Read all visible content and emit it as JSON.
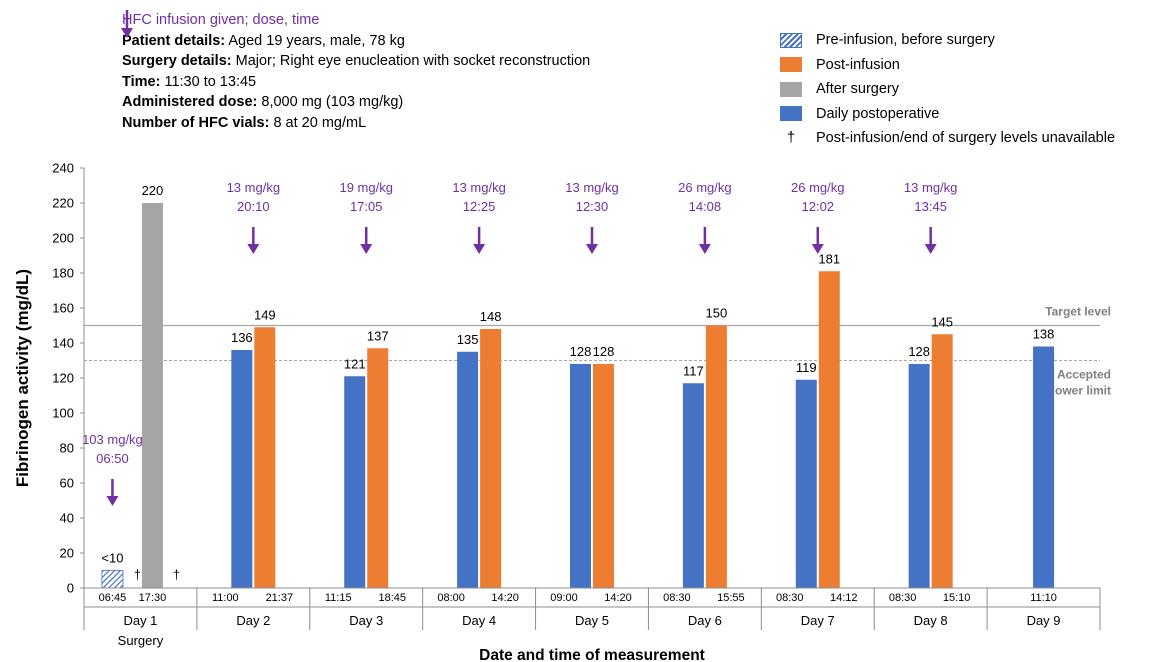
{
  "header": {
    "hfc_note": "HFC infusion given; dose, time",
    "patient_label": "Patient details:",
    "patient_value": " Aged 19 years, male, 78 kg",
    "surgery_label": "Surgery details:",
    "surgery_value": " Major; Right eye enucleation with socket reconstruction",
    "time_label": "Time:",
    "time_value": " 11:30 to 13:45",
    "dose_label": "Administered dose:",
    "dose_value": " 8,000 mg (103 mg/kg)",
    "vials_label": "Number of HFC vials:",
    "vials_value": " 8 at 20 mg/mL"
  },
  "legend": {
    "items": [
      {
        "label": "Pre-infusion, before surgery",
        "style": "hatched-blue"
      },
      {
        "label": "Post-infusion",
        "style": "orange"
      },
      {
        "label": "After surgery",
        "style": "gray"
      },
      {
        "label": "Daily postoperative",
        "style": "blue"
      },
      {
        "label": "Post-infusion/end of surgery levels unavailable",
        "style": "dagger",
        "symbol": "†"
      }
    ]
  },
  "colors": {
    "blue": "#4472c4",
    "orange": "#ed7d31",
    "gray": "#a5a5a5",
    "purple": "#7030a0",
    "reference_line": "#a6a6a6",
    "axis": "#8c8c8c",
    "reference_text": "#808080"
  },
  "chart_data": {
    "type": "bar",
    "xlabel": "Date and time of measurement",
    "ylabel": "Fibrinogen activity (mg/dL)",
    "ylim": [
      0,
      240
    ],
    "yticks": [
      0,
      20,
      40,
      60,
      80,
      100,
      120,
      140,
      160,
      180,
      200,
      220,
      240
    ],
    "grid": false,
    "legend_position": "top-right",
    "reference_lines": [
      {
        "label": "Target level",
        "value": 150,
        "style": "solid"
      },
      {
        "label": "Accepted lower limit",
        "value": 130,
        "style": "dashed"
      }
    ],
    "groups": [
      {
        "day": "Day 1",
        "subtitle": "Surgery",
        "infusion": {
          "dose": "103 mg/kg",
          "time": "06:50"
        },
        "measurements": [
          {
            "time": "06:45",
            "value": 10,
            "label": "<10",
            "type": "pre-infusion"
          },
          {
            "time": "17:30",
            "value": 220,
            "label": "220",
            "type": "after-surgery"
          }
        ],
        "daggers": [
          "†",
          "†"
        ]
      },
      {
        "day": "Day 2",
        "subtitle": "",
        "infusion": {
          "dose": "13 mg/kg",
          "time": "20:10"
        },
        "measurements": [
          {
            "time": "11:00",
            "value": 136,
            "label": "136",
            "type": "daily"
          },
          {
            "time": "21:37",
            "value": 149,
            "label": "149",
            "type": "post-infusion"
          }
        ]
      },
      {
        "day": "Day 3",
        "subtitle": "",
        "infusion": {
          "dose": "19 mg/kg",
          "time": "17:05"
        },
        "measurements": [
          {
            "time": "11:15",
            "value": 121,
            "label": "121",
            "type": "daily"
          },
          {
            "time": "18:45",
            "value": 137,
            "label": "137",
            "type": "post-infusion"
          }
        ]
      },
      {
        "day": "Day 4",
        "subtitle": "",
        "infusion": {
          "dose": "13 mg/kg",
          "time": "12:25"
        },
        "measurements": [
          {
            "time": "08:00",
            "value": 135,
            "label": "135",
            "type": "daily"
          },
          {
            "time": "14:20",
            "value": 148,
            "label": "148",
            "type": "post-infusion"
          }
        ]
      },
      {
        "day": "Day 5",
        "subtitle": "",
        "infusion": {
          "dose": "13 mg/kg",
          "time": "12:30"
        },
        "measurements": [
          {
            "time": "09:00",
            "value": 128,
            "label": "128",
            "type": "daily"
          },
          {
            "time": "14:20",
            "value": 128,
            "label": "128",
            "type": "post-infusion"
          }
        ]
      },
      {
        "day": "Day 6",
        "subtitle": "",
        "infusion": {
          "dose": "26 mg/kg",
          "time": "14:08"
        },
        "measurements": [
          {
            "time": "08:30",
            "value": 117,
            "label": "117",
            "type": "daily"
          },
          {
            "time": "15:55",
            "value": 150,
            "label": "150",
            "type": "post-infusion"
          }
        ]
      },
      {
        "day": "Day 7",
        "subtitle": "",
        "infusion": {
          "dose": "26 mg/kg",
          "time": "12:02"
        },
        "measurements": [
          {
            "time": "08:30",
            "value": 119,
            "label": "119",
            "type": "daily"
          },
          {
            "time": "14:12",
            "value": 181,
            "label": "181",
            "type": "post-infusion"
          }
        ]
      },
      {
        "day": "Day 8",
        "subtitle": "",
        "infusion": {
          "dose": "13 mg/kg",
          "time": "13:45"
        },
        "measurements": [
          {
            "time": "08:30",
            "value": 128,
            "label": "128",
            "type": "daily"
          },
          {
            "time": "15:10",
            "value": 145,
            "label": "145",
            "type": "post-infusion"
          }
        ]
      },
      {
        "day": "Day 9",
        "subtitle": "",
        "infusion": null,
        "measurements": [
          {
            "time": "11:10",
            "value": 138,
            "label": "138",
            "type": "daily"
          }
        ]
      }
    ]
  }
}
